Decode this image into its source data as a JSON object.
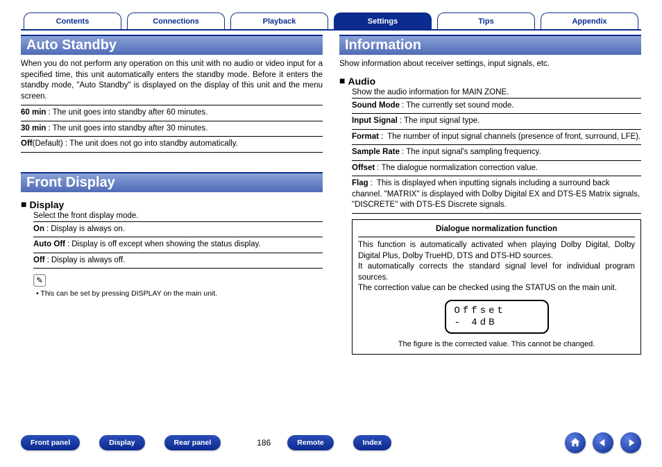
{
  "tabs": {
    "items": [
      "Contents",
      "Connections",
      "Playback",
      "Settings",
      "Tips",
      "Appendix"
    ],
    "active_index": 3
  },
  "left": {
    "section1_title": "Auto Standby",
    "section1_intro": "When you do not perform any operation on this unit with no audio or video input for a specified time, this unit automatically enters the standby mode. Before it enters the standby mode, \"Auto Standby\" is displayed on the display of this unit and the menu screen.",
    "section1_rows": [
      {
        "term": "60 min",
        "desc": "The unit goes into standby after 60 minutes."
      },
      {
        "term": "30 min",
        "desc": "The unit goes into standby after 30 minutes."
      },
      {
        "term": "Off",
        "desc": "(Default) : The unit does not go into standby automatically.",
        "combine": true
      }
    ],
    "section2_title": "Front Display",
    "sub1_title": "Display",
    "sub1_intro": "Select the front display mode.",
    "sub1_rows": [
      {
        "term": "On",
        "desc": "Display is always on."
      },
      {
        "term": "Auto Off",
        "desc": "Display is off except when showing the status display."
      },
      {
        "term": "Off",
        "desc": "Display is always off."
      }
    ],
    "note_icon": "✎",
    "note_text": "This can be set by pressing DISPLAY on the main unit."
  },
  "right": {
    "section_title": "Information",
    "intro": "Show information about receiver settings, input signals, etc.",
    "sub_title": "Audio",
    "sub_intro": "Show the audio information for MAIN ZONE.",
    "rows": [
      {
        "term": "Sound Mode",
        "desc": "The currently set sound mode."
      },
      {
        "term": "Input Signal",
        "desc": "The input signal type."
      },
      {
        "term": "Format",
        "desc": "The number of input signal channels (presence of front, surround, LFE)."
      },
      {
        "term": "Sample Rate",
        "desc": "The input signal's sampling frequency."
      },
      {
        "term": "Offset",
        "desc": "The dialogue normalization correction value."
      },
      {
        "term": "Flag",
        "desc": "This is displayed when inputting signals including a surround back channel. \"MATRIX\" is displayed with Dolby Digital EX and DTS-ES Matrix signals, \"DISCRETE\" with DTS-ES Discrete signals."
      }
    ],
    "box_title": "Dialogue normalization function",
    "box_p1": "This function is automatically activated when playing Dolby Digital, Dolby Digital Plus, Dolby TrueHD, DTS and DTS-HD sources.",
    "box_p2": "It automatically corrects the standard signal level for individual program sources.",
    "box_p3": "The correction value can be checked using the STATUS on the main unit.",
    "offset_line1": "Offset",
    "offset_line2": " - 4dB",
    "box_caption": "The figure is the corrected value. This cannot be changed."
  },
  "bottom": {
    "pills": [
      "Front panel",
      "Display",
      "Rear panel"
    ],
    "page": "186",
    "pills2": [
      "Remote",
      "Index"
    ]
  }
}
